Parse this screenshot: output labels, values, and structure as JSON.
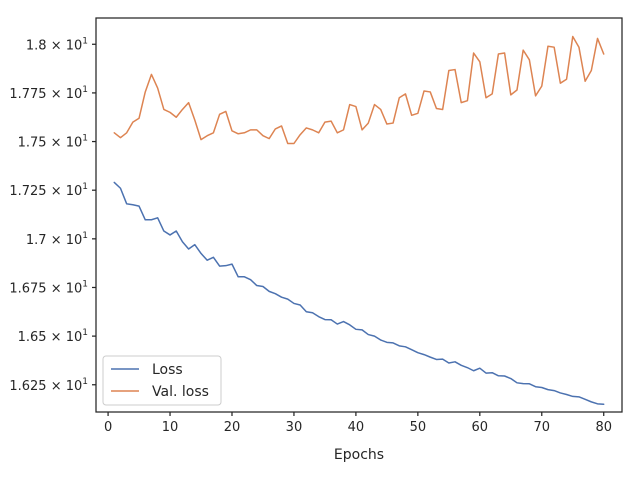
{
  "chart_data": {
    "type": "line",
    "title": "",
    "xlabel": "Epochs",
    "ylabel": "",
    "xlim": [
      -1.95,
      82.95
    ],
    "ylim": [
      16.11,
      18.135
    ],
    "grid": false,
    "legend_position": "lower-left",
    "xticks": [
      0,
      10,
      20,
      30,
      40,
      50,
      60,
      70,
      80
    ],
    "xtick_labels": [
      "0",
      "10",
      "20",
      "30",
      "40",
      "50",
      "60",
      "70",
      "80"
    ],
    "yticks": [
      {
        "value": 16.25,
        "mantissa": "1.625",
        "exp": "1"
      },
      {
        "value": 16.5,
        "mantissa": "1.65",
        "exp": "1"
      },
      {
        "value": 16.75,
        "mantissa": "1.675",
        "exp": "1"
      },
      {
        "value": 17.0,
        "mantissa": "1.7",
        "exp": "1"
      },
      {
        "value": 17.25,
        "mantissa": "1.725",
        "exp": "1"
      },
      {
        "value": 17.5,
        "mantissa": "1.75",
        "exp": "1"
      },
      {
        "value": 17.75,
        "mantissa": "1.775",
        "exp": "1"
      },
      {
        "value": 18.0,
        "mantissa": "1.8",
        "exp": "1"
      }
    ],
    "y_tick_times": "×",
    "y_tick_base": "10",
    "x": [
      1,
      2,
      3,
      4,
      5,
      6,
      7,
      8,
      9,
      10,
      11,
      12,
      13,
      14,
      15,
      16,
      17,
      18,
      19,
      20,
      21,
      22,
      23,
      24,
      25,
      26,
      27,
      28,
      29,
      30,
      31,
      32,
      33,
      34,
      35,
      36,
      37,
      38,
      39,
      40,
      41,
      42,
      43,
      44,
      45,
      46,
      47,
      48,
      49,
      50,
      51,
      52,
      53,
      54,
      55,
      56,
      57,
      58,
      59,
      60,
      61,
      62,
      63,
      64,
      65,
      66,
      67,
      68,
      69,
      70,
      71,
      72,
      73,
      74,
      75,
      76,
      77,
      78,
      79,
      80
    ],
    "series": [
      {
        "name": "Loss",
        "color": "#4c72b0",
        "values": [
          17.29,
          17.26,
          17.18,
          17.175,
          17.168,
          17.098,
          17.098,
          17.108,
          17.04,
          17.02,
          17.04,
          16.985,
          16.948,
          16.97,
          16.925,
          16.89,
          16.905,
          16.86,
          16.862,
          16.87,
          16.805,
          16.805,
          16.79,
          16.76,
          16.755,
          16.73,
          16.718,
          16.7,
          16.69,
          16.668,
          16.66,
          16.625,
          16.62,
          16.6,
          16.585,
          16.584,
          16.562,
          16.575,
          16.558,
          16.535,
          16.532,
          16.508,
          16.5,
          16.48,
          16.468,
          16.465,
          16.45,
          16.445,
          16.43,
          16.415,
          16.405,
          16.392,
          16.38,
          16.382,
          16.362,
          16.368,
          16.35,
          16.338,
          16.322,
          16.335,
          16.31,
          16.312,
          16.296,
          16.295,
          16.282,
          16.26,
          16.256,
          16.255,
          16.24,
          16.236,
          16.225,
          16.22,
          16.208,
          16.2,
          16.19,
          16.188,
          16.175,
          16.162,
          16.152,
          16.15
        ]
      },
      {
        "name": "Val. loss",
        "color": "#dd8452",
        "values": [
          17.545,
          17.52,
          17.545,
          17.6,
          17.62,
          17.755,
          17.845,
          17.775,
          17.665,
          17.65,
          17.625,
          17.665,
          17.7,
          17.61,
          17.51,
          17.53,
          17.545,
          17.64,
          17.655,
          17.555,
          17.54,
          17.545,
          17.56,
          17.56,
          17.53,
          17.515,
          17.565,
          17.58,
          17.49,
          17.49,
          17.535,
          17.57,
          17.56,
          17.545,
          17.6,
          17.605,
          17.545,
          17.56,
          17.69,
          17.68,
          17.56,
          17.595,
          17.69,
          17.665,
          17.59,
          17.595,
          17.725,
          17.745,
          17.635,
          17.645,
          17.76,
          17.755,
          17.67,
          17.665,
          17.865,
          17.87,
          17.7,
          17.71,
          17.955,
          17.91,
          17.725,
          17.745,
          17.95,
          17.955,
          17.74,
          17.765,
          17.97,
          17.92,
          17.735,
          17.785,
          17.99,
          17.985,
          17.8,
          17.82,
          18.04,
          17.985,
          17.81,
          17.865,
          18.03,
          17.95
        ]
      }
    ]
  }
}
